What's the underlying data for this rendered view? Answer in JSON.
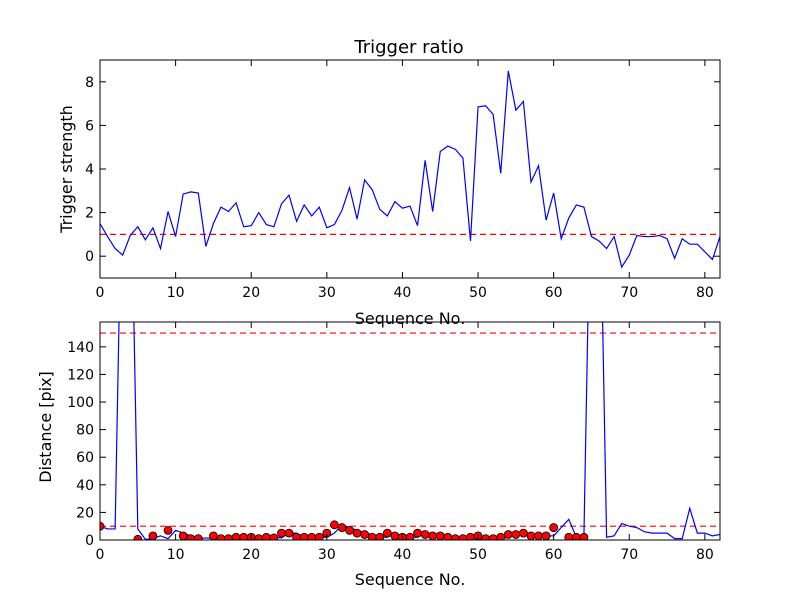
{
  "chart_data": [
    {
      "type": "line",
      "title": "Trigger ratio",
      "xlabel": "Sequence No.",
      "ylabel": "Trigger strength",
      "xlim": [
        0,
        82
      ],
      "ylim": [
        -1,
        9
      ],
      "xticks": [
        "0",
        "10",
        "20",
        "30",
        "40",
        "50",
        "60",
        "70",
        "80"
      ],
      "yticks": [
        "0",
        "2",
        "4",
        "6",
        "8"
      ],
      "reference_lines": [
        {
          "y": 1.0,
          "color": "#ff0000",
          "style": "dashed"
        }
      ],
      "series": [
        {
          "color": "#0000ff",
          "x": [
            0,
            1,
            2,
            3,
            4,
            5,
            6,
            7,
            8,
            9,
            10,
            11,
            12,
            13,
            14,
            15,
            16,
            17,
            18,
            19,
            20,
            21,
            22,
            23,
            24,
            25,
            26,
            27,
            28,
            29,
            30,
            31,
            32,
            33,
            34,
            35,
            36,
            37,
            38,
            39,
            40,
            41,
            42,
            43,
            44,
            45,
            46,
            47,
            48,
            49,
            50,
            51,
            52,
            53,
            54,
            55,
            56,
            57,
            58,
            59,
            60,
            61,
            62,
            63,
            64,
            65,
            66,
            67,
            68,
            69,
            70,
            71,
            72,
            73,
            74,
            75,
            76,
            77,
            78,
            79,
            80,
            81,
            82
          ],
          "y": [
            1.5,
            0.9,
            0.35,
            0.05,
            0.95,
            1.35,
            0.75,
            1.3,
            0.35,
            2.05,
            0.9,
            2.85,
            2.95,
            2.9,
            0.45,
            1.5,
            2.25,
            2.05,
            2.45,
            1.35,
            1.4,
            2.0,
            1.45,
            1.35,
            2.4,
            2.8,
            1.6,
            2.35,
            1.85,
            2.25,
            1.3,
            1.45,
            2.1,
            3.15,
            1.7,
            3.5,
            3.05,
            2.15,
            1.85,
            2.5,
            2.2,
            2.3,
            1.4,
            4.4,
            2.05,
            4.8,
            5.05,
            4.9,
            4.5,
            0.7,
            6.85,
            6.9,
            6.5,
            3.8,
            8.5,
            6.7,
            7.1,
            3.4,
            4.15,
            1.65,
            2.9,
            0.8,
            1.75,
            2.35,
            2.25,
            0.9,
            0.7,
            0.35,
            0.9,
            -0.5,
            0.05,
            0.95,
            0.9,
            0.9,
            0.95,
            0.8,
            -0.1,
            0.8,
            0.55,
            0.55,
            0.2,
            -0.15,
            0.9
          ]
        }
      ]
    },
    {
      "type": "line",
      "title": "",
      "xlabel": "Sequence No.",
      "ylabel": "Distance [pix]",
      "xlim": [
        0,
        82
      ],
      "ylim": [
        0,
        158
      ],
      "xticks": [
        "0",
        "10",
        "20",
        "30",
        "40",
        "50",
        "60",
        "70",
        "80"
      ],
      "yticks": [
        "0",
        "20",
        "40",
        "60",
        "80",
        "100",
        "120",
        "140"
      ],
      "reference_lines": [
        {
          "y": 150,
          "color": "#ff0000",
          "style": "dashed"
        },
        {
          "y": 10,
          "color": "#ff0000",
          "style": "dashed"
        }
      ],
      "series": [
        {
          "color": "#0000ff",
          "x": [
            0,
            1,
            2,
            3,
            4,
            5,
            6,
            7,
            8,
            9,
            10,
            11,
            12,
            13,
            14,
            15,
            16,
            17,
            18,
            19,
            20,
            21,
            22,
            23,
            24,
            25,
            26,
            27,
            28,
            29,
            30,
            31,
            32,
            33,
            34,
            35,
            36,
            37,
            38,
            39,
            40,
            41,
            42,
            43,
            44,
            45,
            46,
            47,
            48,
            49,
            50,
            51,
            52,
            53,
            54,
            55,
            56,
            57,
            58,
            59,
            60,
            61,
            62,
            63,
            64,
            65,
            66,
            67,
            68,
            69,
            70,
            71,
            72,
            73,
            74,
            75,
            76,
            77,
            78,
            79,
            80,
            81,
            82
          ],
          "y": [
            10,
            8,
            8,
            300,
            300,
            8,
            0.5,
            1,
            3,
            1,
            7,
            5,
            3,
            1,
            1.5,
            1,
            3,
            1,
            1,
            2,
            2,
            2,
            1,
            2,
            1.5,
            5,
            5,
            2,
            2,
            2,
            2,
            5,
            11,
            9,
            7,
            5,
            4,
            2,
            2,
            5,
            3,
            2,
            2,
            5,
            4,
            3,
            3,
            2,
            1,
            1,
            2,
            3,
            1,
            1,
            2,
            4,
            4,
            5,
            3,
            3,
            3,
            9,
            15,
            2,
            2,
            300,
            300,
            2,
            3,
            12,
            10,
            9,
            6,
            5,
            5,
            5,
            1,
            1,
            23,
            5,
            5,
            3,
            4
          ]
        }
      ],
      "markers": {
        "color": "#ff0000",
        "x": [
          0,
          5,
          7,
          9,
          11,
          12,
          13,
          15,
          16,
          17,
          18,
          19,
          20,
          21,
          22,
          23,
          24,
          25,
          26,
          27,
          28,
          29,
          30,
          31,
          32,
          33,
          34,
          35,
          36,
          37,
          38,
          39,
          40,
          41,
          42,
          43,
          44,
          45,
          46,
          47,
          48,
          49,
          50,
          51,
          52,
          53,
          54,
          55,
          56,
          57,
          58,
          59,
          60,
          62,
          63,
          64
        ],
        "y": [
          10,
          0.5,
          3,
          7,
          3,
          1,
          1,
          3,
          1,
          1,
          2,
          2,
          2,
          1,
          2,
          1.5,
          5,
          5,
          2,
          2,
          2,
          2,
          5,
          11,
          9,
          7,
          5,
          4,
          2,
          2,
          5,
          3,
          2,
          2,
          5,
          4,
          3,
          3,
          2,
          1,
          1,
          2,
          3,
          1,
          1,
          2,
          4,
          4,
          5,
          3,
          3,
          3,
          9,
          2,
          2,
          2
        ]
      }
    }
  ]
}
